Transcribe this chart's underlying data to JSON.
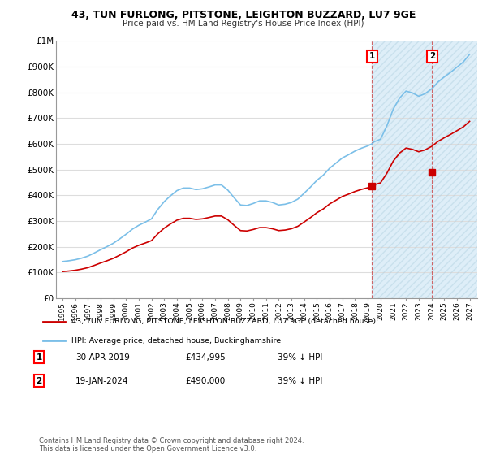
{
  "title": "43, TUN FURLONG, PITSTONE, LEIGHTON BUZZARD, LU7 9GE",
  "subtitle": "Price paid vs. HM Land Registry's House Price Index (HPI)",
  "legend_line1": "43, TUN FURLONG, PITSTONE, LEIGHTON BUZZARD, LU7 9GE (detached house)",
  "legend_line2": "HPI: Average price, detached house, Buckinghamshire",
  "footnote": "Contains HM Land Registry data © Crown copyright and database right 2024.\nThis data is licensed under the Open Government Licence v3.0.",
  "table_rows": [
    {
      "num": "1",
      "date": "30-APR-2019",
      "price": "£434,995",
      "pct": "39% ↓ HPI"
    },
    {
      "num": "2",
      "date": "19-JAN-2024",
      "price": "£490,000",
      "pct": "39% ↓ HPI"
    }
  ],
  "ylim": [
    0,
    1000000
  ],
  "yticks": [
    0,
    100000,
    200000,
    300000,
    400000,
    500000,
    600000,
    700000,
    800000,
    900000,
    1000000
  ],
  "hpi_color": "#7bbfe8",
  "price_color": "#cc0000",
  "point1_year": 2019.33,
  "point1_value": 434995,
  "point2_year": 2024.05,
  "point2_value": 490000,
  "shade_start_year": 2019.33,
  "shade_color": "#deeef8",
  "background_color": "#ffffff",
  "grid_color": "#dddddd",
  "xlim_left": 1994.5,
  "xlim_right": 2027.6
}
